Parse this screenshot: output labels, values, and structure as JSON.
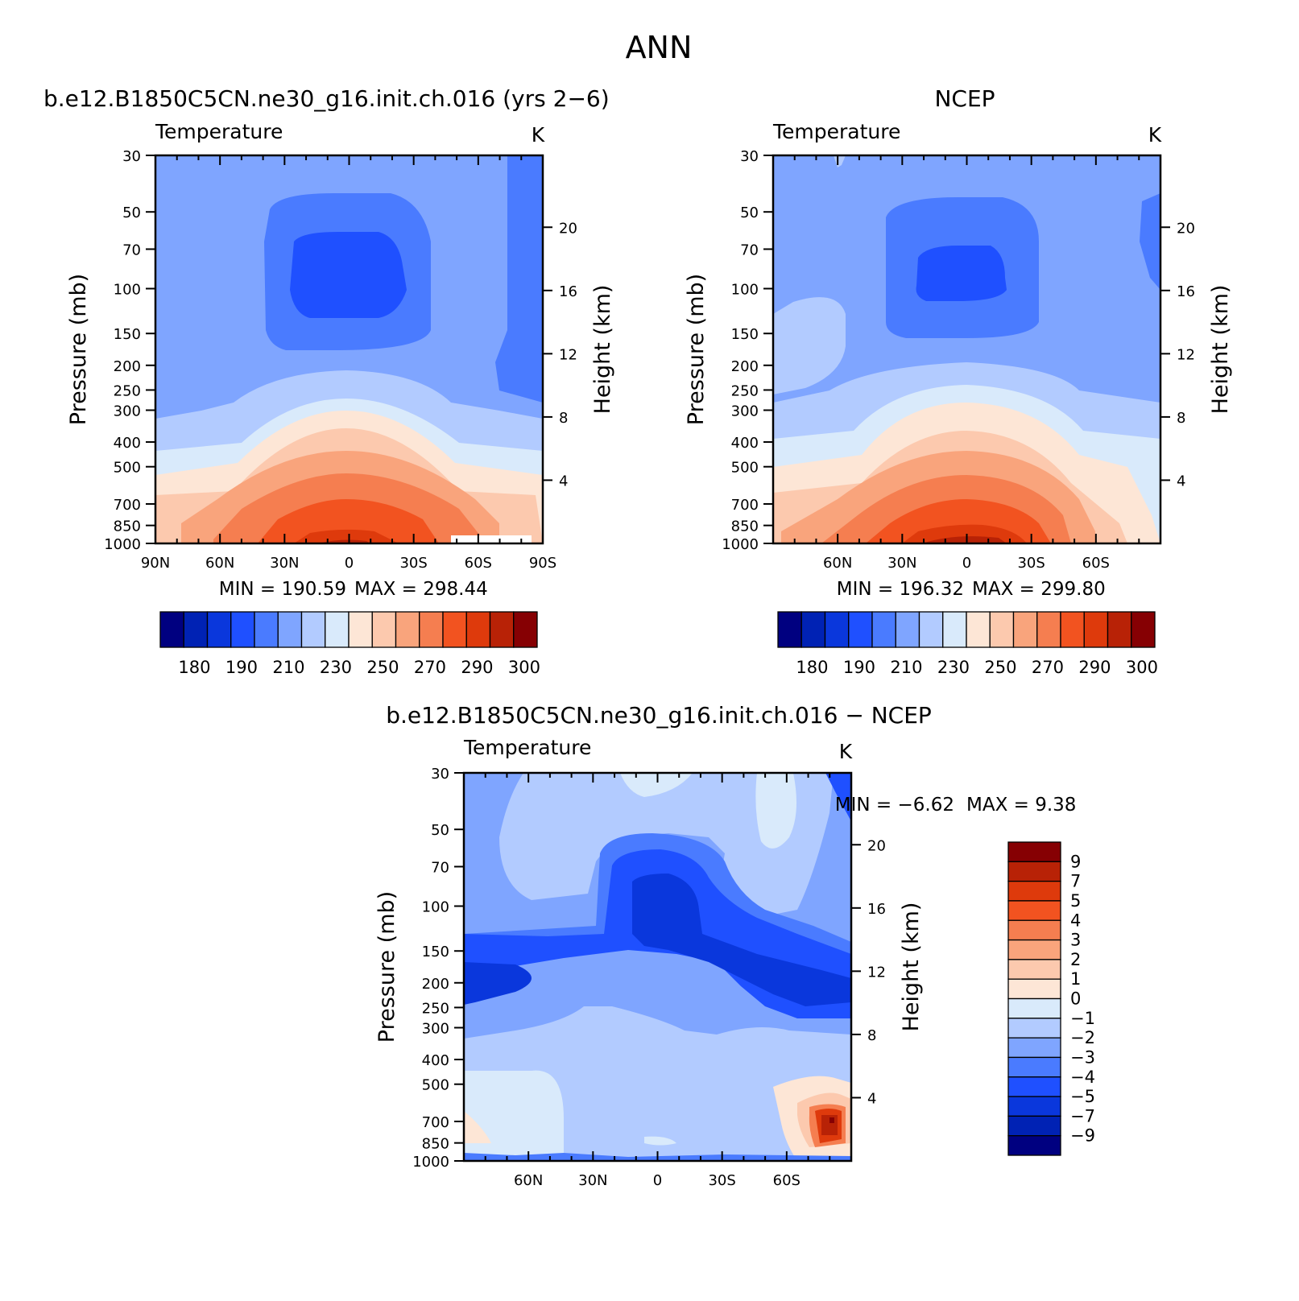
{
  "page_title": "ANN",
  "panels": {
    "model": {
      "title": "b.e12.B1850C5CN.ne30_g16.init.ch.016 (yrs 2−6)",
      "variable": "Temperature",
      "units": "K",
      "min_label": "MIN = 190.59",
      "max_label": "MAX = 298.44"
    },
    "obs": {
      "title": "NCEP",
      "variable": "Temperature",
      "units": "K",
      "min_label": "MIN = 196.32",
      "max_label": "MAX = 299.80"
    },
    "diff": {
      "title": "b.e12.B1850C5CN.ne30_g16.init.ch.016 − NCEP",
      "variable": "Temperature",
      "units": "K",
      "min_label": "MIN = −6.62",
      "max_label": "MAX = 9.38"
    }
  },
  "axes": {
    "ylabel_left": "Pressure (mb)",
    "ylabel_right": "Height (km)"
  },
  "chart_data": [
    {
      "type": "heatmap",
      "id": "model",
      "title": "b.e12.B1850C5CN.ne30_g16.init.ch.016 (yrs 2−6)",
      "x_tick_labels": [
        "90N",
        "60N",
        "30N",
        "0",
        "30S",
        "60S",
        "90S"
      ],
      "x_values": [
        90,
        60,
        30,
        0,
        -30,
        -60,
        -90
      ],
      "xlim": [
        90,
        -90
      ],
      "pressure_ticks": [
        30,
        50,
        70,
        100,
        150,
        200,
        250,
        300,
        400,
        500,
        700,
        850,
        1000
      ],
      "height_ticks_km": [
        4,
        8,
        12,
        16,
        20
      ],
      "ylim_mb": [
        1000,
        30
      ],
      "min": 190.59,
      "max": 298.44
    },
    {
      "type": "heatmap",
      "id": "obs",
      "title": "NCEP",
      "x_tick_labels": [
        "60N",
        "30N",
        "0",
        "30S",
        "60S"
      ],
      "x_values": [
        60,
        30,
        0,
        -30,
        -60
      ],
      "xlim": [
        90,
        -90
      ],
      "pressure_ticks": [
        30,
        50,
        70,
        100,
        150,
        200,
        250,
        300,
        400,
        500,
        700,
        850,
        1000
      ],
      "height_ticks_km": [
        4,
        8,
        12,
        16,
        20
      ],
      "ylim_mb": [
        1000,
        30
      ],
      "min": 196.32,
      "max": 299.8
    },
    {
      "type": "heatmap",
      "id": "diff",
      "title": "b.e12.B1850C5CN.ne30_g16.init.ch.016 − NCEP",
      "x_tick_labels": [
        "60N",
        "30N",
        "0",
        "30S",
        "60S"
      ],
      "x_values": [
        60,
        30,
        0,
        -30,
        -60
      ],
      "xlim": [
        90,
        -90
      ],
      "pressure_ticks": [
        30,
        50,
        70,
        100,
        150,
        200,
        250,
        300,
        400,
        500,
        700,
        850,
        1000
      ],
      "height_ticks_km": [
        4,
        8,
        12,
        16,
        20
      ],
      "ylim_mb": [
        1000,
        30
      ],
      "min": -6.62,
      "max": 9.38
    }
  ],
  "colorbars": {
    "temperature": {
      "colors": [
        "#000080",
        "#0022b4",
        "#0a37dc",
        "#1f50ff",
        "#4a7bff",
        "#7fa5ff",
        "#b2cbff",
        "#d9eafb",
        "#fde6d6",
        "#fcc9ae",
        "#f9a47c",
        "#f57e50",
        "#f25320",
        "#de3a0c",
        "#b82206",
        "#860003"
      ],
      "labels": [
        "180",
        "190",
        "210",
        "230",
        "250",
        "270",
        "290",
        "300"
      ]
    },
    "difference": {
      "colors": [
        "#860003",
        "#b82206",
        "#de3a0c",
        "#f25320",
        "#f57e50",
        "#f9a47c",
        "#fcc9ae",
        "#fde6d6",
        "#d9eafb",
        "#b2cbff",
        "#7fa5ff",
        "#4a7bff",
        "#1f50ff",
        "#0a37dc",
        "#0022b4",
        "#000080"
      ],
      "labels": [
        "9",
        "7",
        "5",
        "4",
        "3",
        "2",
        "1",
        "0",
        "−1",
        "−2",
        "−3",
        "−4",
        "−5",
        "−7",
        "−9"
      ]
    }
  }
}
